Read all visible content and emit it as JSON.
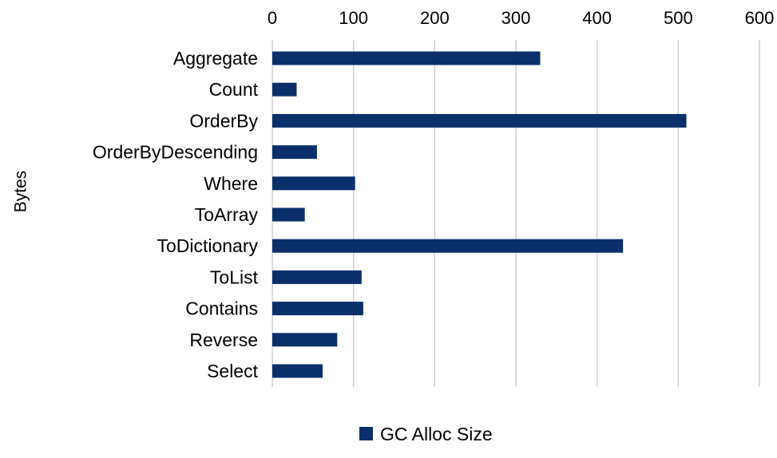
{
  "chart_data": {
    "type": "bar",
    "orientation": "horizontal",
    "title": "",
    "xlabel": "",
    "ylabel": "Bytes",
    "xlim": [
      0,
      600
    ],
    "x_ticks": [
      0,
      100,
      200,
      300,
      400,
      500,
      600
    ],
    "x_axis_position": "top",
    "grid": "vertical",
    "categories": [
      "Aggregate",
      "Count",
      "OrderBy",
      "OrderByDescending",
      "Where",
      "ToArray",
      "ToDictionary",
      "ToList",
      "Contains",
      "Reverse",
      "Select"
    ],
    "series": [
      {
        "name": "GC Alloc Size",
        "values": [
          330,
          30,
          510,
          55,
          102,
          40,
          432,
          110,
          112,
          80,
          62
        ],
        "color": "#0b2f6b"
      }
    ],
    "legend": {
      "position": "bottom-center",
      "label": "GC Alloc Size"
    }
  }
}
